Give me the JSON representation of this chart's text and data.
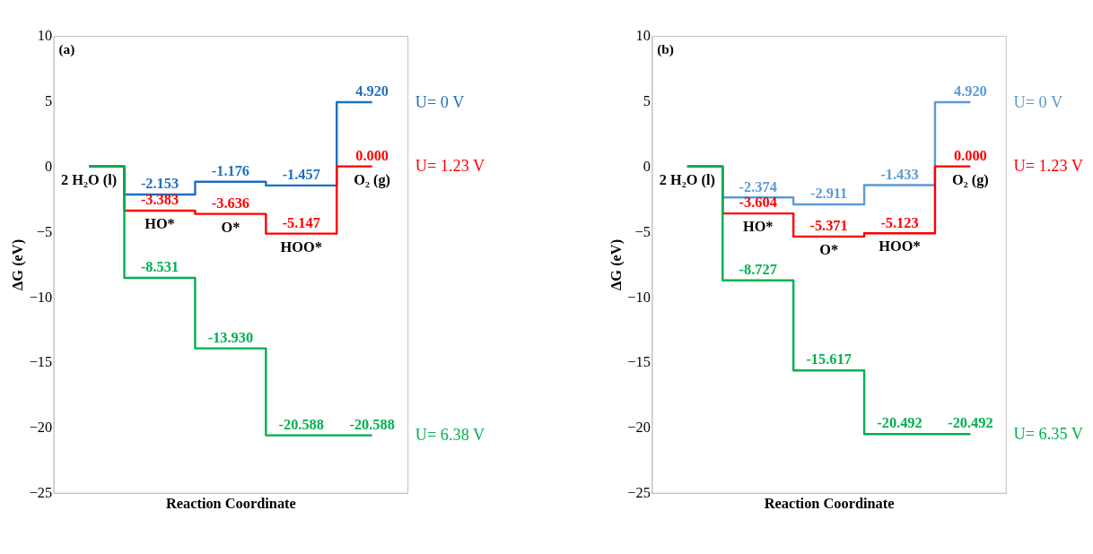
{
  "chart_data": [
    {
      "type": "step",
      "title": "(a)",
      "xlabel": "Reaction Coordinate",
      "ylabel": "ΔG (eV)",
      "categories": [
        null,
        null,
        null,
        null,
        null
      ],
      "ylim": [
        -25,
        10
      ],
      "yticks": [
        -25,
        -20,
        -15,
        -10,
        -5,
        0,
        5,
        10
      ],
      "grid": false,
      "series": [
        {
          "name": "U= 0 V",
          "color": "#1f6fc0",
          "values": [
            0,
            -2.153,
            -1.176,
            -1.457,
            4.92
          ],
          "value_labels": [
            null,
            "-2.153",
            "-1.176",
            "-1.457",
            "4.920"
          ]
        },
        {
          "name": "U= 1.23 V",
          "color": "#ff0000",
          "values": [
            0,
            -3.383,
            -3.636,
            -5.147,
            0.0
          ],
          "value_labels": [
            null,
            "-3.383",
            "-3.636",
            "-5.147",
            "0.000"
          ]
        },
        {
          "name": "U= 6.38 V",
          "color": "#00b050",
          "values": [
            0,
            -8.531,
            -13.93,
            -20.588,
            -20.588
          ],
          "value_labels": [
            null,
            "-8.531",
            "-13.930",
            "-20.588",
            "-20.588"
          ]
        }
      ],
      "annotations": [
        "2 H₂O (l)",
        "HO*",
        "O*",
        "HOO*",
        "O₂ (g)"
      ]
    },
    {
      "type": "step",
      "title": "(b)",
      "xlabel": "Reaction Coordinate",
      "ylabel": "ΔG (eV)",
      "categories": [
        null,
        null,
        null,
        null,
        null
      ],
      "ylim": [
        -25,
        10
      ],
      "yticks": [
        -25,
        -20,
        -15,
        -10,
        -5,
        0,
        5,
        10
      ],
      "grid": false,
      "series": [
        {
          "name": "U= 0 V",
          "color": "#5b9bd5",
          "values": [
            0,
            -2.374,
            -2.911,
            -1.433,
            4.92
          ],
          "value_labels": [
            null,
            "-2.374",
            "-2.911",
            "-1.433",
            "4.920"
          ]
        },
        {
          "name": "U= 1.23 V",
          "color": "#ff0000",
          "values": [
            0,
            -3.604,
            -5.371,
            -5.123,
            0.0
          ],
          "value_labels": [
            null,
            "-3.604",
            "-5.371",
            "-5.123",
            "0.000"
          ]
        },
        {
          "name": "U= 6.35 V",
          "color": "#00b050",
          "values": [
            0,
            -8.727,
            -15.617,
            -20.492,
            -20.492
          ],
          "value_labels": [
            null,
            "-8.727",
            "-15.617",
            "-20.492",
            "-20.492"
          ]
        }
      ],
      "annotations": [
        "2 H₂O (l)",
        "HO*",
        "O*",
        "HOO*",
        "O₂ (g)"
      ]
    }
  ]
}
